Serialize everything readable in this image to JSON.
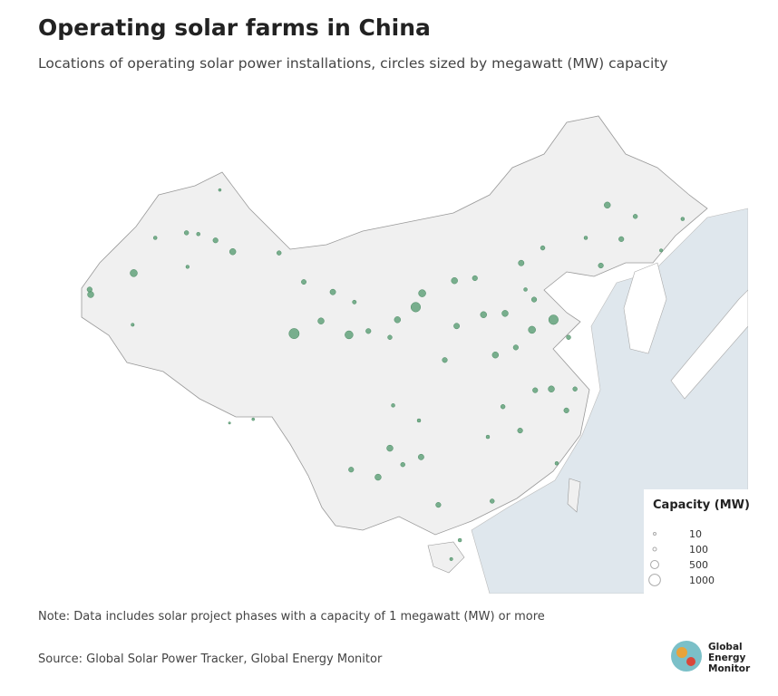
{
  "title": "Operating solar farms in China",
  "subtitle": "Locations of operating solar power installations, circles sized by megawatt (MW) capacity",
  "note": "Note: Data includes solar project phases with a capacity of 1 megawatt (MW) or more",
  "source": "Source: Global Solar Power Tracker, Global Energy Monitor",
  "logo": [
    "Global",
    "Energy",
    "Monitor"
  ],
  "legend": {
    "title": "Capacity (MW)",
    "sizes": [
      10,
      100,
      500,
      1000
    ]
  },
  "map": {
    "color": "#5a9e74",
    "points": [
      {
        "lon": 87.6,
        "lat": 43.8,
        "mw": 200
      },
      {
        "lon": 86,
        "lat": 44.3,
        "mw": 100
      },
      {
        "lon": 89.2,
        "lat": 42.9,
        "mw": 300
      },
      {
        "lon": 93.5,
        "lat": 42.8,
        "mw": 150
      },
      {
        "lon": 80,
        "lat": 41.2,
        "mw": 400
      },
      {
        "lon": 76,
        "lat": 39.5,
        "mw": 300
      },
      {
        "lon": 75.9,
        "lat": 39.9,
        "mw": 200
      },
      {
        "lon": 79.9,
        "lat": 37.1,
        "mw": 80
      },
      {
        "lon": 82,
        "lat": 44,
        "mw": 100
      },
      {
        "lon": 84.9,
        "lat": 44.4,
        "mw": 150
      },
      {
        "lon": 88,
        "lat": 47.8,
        "mw": 60
      },
      {
        "lon": 85,
        "lat": 41.7,
        "mw": 90
      },
      {
        "lon": 94.9,
        "lat": 36.4,
        "mw": 800
      },
      {
        "lon": 97.4,
        "lat": 37.4,
        "mw": 300
      },
      {
        "lon": 100,
        "lat": 36.3,
        "mw": 500
      },
      {
        "lon": 101.8,
        "lat": 36.6,
        "mw": 200
      },
      {
        "lon": 98.5,
        "lat": 39.7,
        "mw": 250
      },
      {
        "lon": 95.8,
        "lat": 40.5,
        "mw": 180
      },
      {
        "lon": 103.8,
        "lat": 36.1,
        "mw": 150
      },
      {
        "lon": 100.5,
        "lat": 38.9,
        "mw": 120
      },
      {
        "lon": 104.5,
        "lat": 37.5,
        "mw": 300
      },
      {
        "lon": 91.1,
        "lat": 29.6,
        "mw": 60
      },
      {
        "lon": 88.9,
        "lat": 29.3,
        "mw": 40
      },
      {
        "lon": 106.2,
        "lat": 38.5,
        "mw": 700
      },
      {
        "lon": 106.8,
        "lat": 39.6,
        "mw": 400
      },
      {
        "lon": 109.8,
        "lat": 40.6,
        "mw": 300
      },
      {
        "lon": 111.7,
        "lat": 40.8,
        "mw": 200
      },
      {
        "lon": 118,
        "lat": 43.2,
        "mw": 150
      },
      {
        "lon": 122,
        "lat": 44,
        "mw": 100
      },
      {
        "lon": 116,
        "lat": 42,
        "mw": 250
      },
      {
        "lon": 116.4,
        "lat": 39.9,
        "mw": 100
      },
      {
        "lon": 114.5,
        "lat": 38,
        "mw": 300
      },
      {
        "lon": 117.2,
        "lat": 39.1,
        "mw": 200
      },
      {
        "lon": 117,
        "lat": 36.7,
        "mw": 400
      },
      {
        "lon": 120.4,
        "lat": 36.1,
        "mw": 150
      },
      {
        "lon": 119,
        "lat": 37.5,
        "mw": 700
      },
      {
        "lon": 113.6,
        "lat": 34.7,
        "mw": 300
      },
      {
        "lon": 112.5,
        "lat": 37.9,
        "mw": 300
      },
      {
        "lon": 108.9,
        "lat": 34.3,
        "mw": 200
      },
      {
        "lon": 110,
        "lat": 37,
        "mw": 250
      },
      {
        "lon": 115.5,
        "lat": 35.3,
        "mw": 200
      },
      {
        "lon": 118.8,
        "lat": 32,
        "mw": 300
      },
      {
        "lon": 121,
        "lat": 32,
        "mw": 150
      },
      {
        "lon": 120.2,
        "lat": 30.3,
        "mw": 200
      },
      {
        "lon": 117.3,
        "lat": 31.9,
        "mw": 200
      },
      {
        "lon": 114.3,
        "lat": 30.6,
        "mw": 150
      },
      {
        "lon": 112.9,
        "lat": 28.2,
        "mw": 100
      },
      {
        "lon": 115.9,
        "lat": 28.7,
        "mw": 200
      },
      {
        "lon": 119.3,
        "lat": 26.1,
        "mw": 100
      },
      {
        "lon": 113.3,
        "lat": 23.1,
        "mw": 150
      },
      {
        "lon": 110.3,
        "lat": 20,
        "mw": 100
      },
      {
        "lon": 109.5,
        "lat": 18.5,
        "mw": 80
      },
      {
        "lon": 108.3,
        "lat": 22.8,
        "mw": 200
      },
      {
        "lon": 106.7,
        "lat": 26.6,
        "mw": 250
      },
      {
        "lon": 102.7,
        "lat": 25,
        "mw": 300
      },
      {
        "lon": 104.1,
        "lat": 30.7,
        "mw": 100
      },
      {
        "lon": 106.5,
        "lat": 29.5,
        "mw": 100
      },
      {
        "lon": 100.2,
        "lat": 25.6,
        "mw": 200
      },
      {
        "lon": 103.8,
        "lat": 27.3,
        "mw": 300
      },
      {
        "lon": 105,
        "lat": 26,
        "mw": 150
      },
      {
        "lon": 125.3,
        "lat": 43.9,
        "mw": 200
      },
      {
        "lon": 126.6,
        "lat": 45.7,
        "mw": 150
      },
      {
        "lon": 123.4,
        "lat": 41.8,
        "mw": 200
      },
      {
        "lon": 124,
        "lat": 46.6,
        "mw": 300
      },
      {
        "lon": 131,
        "lat": 45.5,
        "mw": 100
      },
      {
        "lon": 129,
        "lat": 43,
        "mw": 80
      }
    ]
  }
}
